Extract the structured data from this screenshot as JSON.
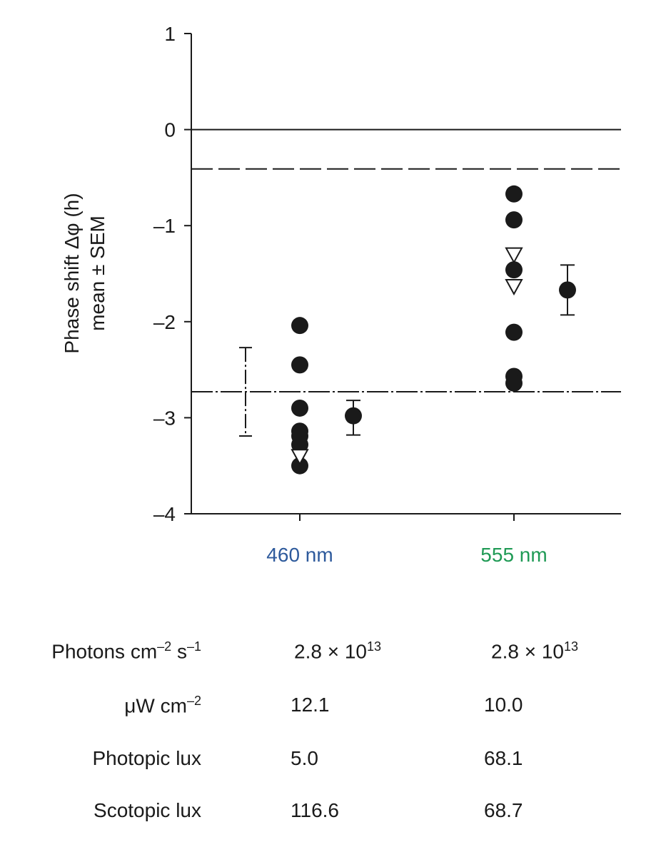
{
  "chart_data": {
    "type": "scatter",
    "ylabel_line1": "Phase shift  Δφ (h)",
    "ylabel_line2": "mean ± SEM",
    "ylim": [
      -4,
      1
    ],
    "yticks": [
      "1",
      "0",
      "–1",
      "–2",
      "–3",
      "–4"
    ],
    "ytick_values": [
      1,
      0,
      -1,
      -2,
      -3,
      -4
    ],
    "categories": [
      "460 nm",
      "555 nm"
    ],
    "category_colors": [
      "#2e5a9c",
      "#1f9a55"
    ],
    "individual_circles": [
      [
        -2.04,
        -2.45,
        -2.9,
        -3.14,
        -3.19,
        -3.28,
        -3.5
      ],
      [
        -0.67,
        -0.94,
        -1.46,
        -2.11,
        -2.57,
        -2.64
      ]
    ],
    "individual_triangles": [
      [
        -3.4
      ],
      [
        -1.3,
        -1.63
      ]
    ],
    "means": [
      {
        "mean": -2.98,
        "sem_low": -3.18,
        "sem_high": -2.82
      },
      {
        "mean": -1.67,
        "sem_low": -1.93,
        "sem_high": -1.41
      }
    ],
    "reference_lines": {
      "solid": 0,
      "dashed": -0.41,
      "dash_dot": {
        "mean": -2.73,
        "sem_low": -3.19,
        "sem_high": -2.27
      }
    },
    "grid": false
  },
  "table": {
    "rows": [
      {
        "label": "Photons cm",
        "label_sup1": "–2",
        "label_mid": " s",
        "label_sup2": "–1",
        "v1": "2.8 × 10",
        "v1_sup": "13",
        "v2": "2.8 × 10",
        "v2_sup": "13"
      },
      {
        "label": "μW cm",
        "label_sup1": "–2",
        "v1": "12.1",
        "v2": "10.0"
      },
      {
        "label": "Photopic lux",
        "v1": "5.0",
        "v2": "68.1"
      },
      {
        "label": "Scotopic lux",
        "v1": "116.6",
        "v2": "68.7"
      }
    ]
  }
}
